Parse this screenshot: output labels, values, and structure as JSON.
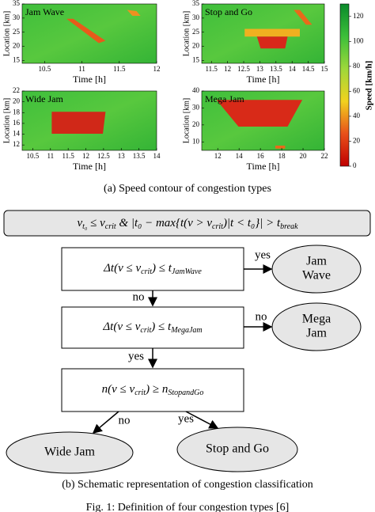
{
  "panels": [
    {
      "title": "Jam Wave",
      "xlabel": "Time [h]",
      "ylabel": "Location [km]",
      "xlim": [
        10.2,
        12
      ],
      "ylim": [
        14,
        35
      ],
      "xticks": [
        10.5,
        11,
        11.5,
        12
      ],
      "yticks": [
        15,
        20,
        25,
        30,
        35
      ]
    },
    {
      "title": "Stop and Go",
      "xlabel": "Time [h]",
      "ylabel": "Location [km]",
      "xlim": [
        11.2,
        15
      ],
      "ylim": [
        14,
        35
      ],
      "xticks": [
        11.5,
        12,
        12.5,
        13,
        13.5,
        14,
        14.5,
        15
      ],
      "yticks": [
        15,
        20,
        25,
        30,
        35
      ]
    },
    {
      "title": "Wide Jam",
      "xlabel": "Time [h]",
      "ylabel": "Location [km]",
      "xlim": [
        10.2,
        14
      ],
      "ylim": [
        11,
        22
      ],
      "xticks": [
        10.5,
        11,
        11.5,
        12,
        12.5,
        13,
        13.5,
        14
      ],
      "yticks": [
        12,
        14,
        16,
        18,
        20,
        22
      ]
    },
    {
      "title": "Mega Jam",
      "xlabel": "Time [h]",
      "ylabel": "Location [km]",
      "xlim": [
        10.5,
        22
      ],
      "ylim": [
        5,
        40
      ],
      "xticks": [
        12,
        14,
        16,
        18,
        20,
        22
      ],
      "yticks": [
        10,
        20,
        30,
        40
      ]
    }
  ],
  "colorbar": {
    "label": "Speed [km/h]",
    "lim": [
      0,
      130
    ],
    "ticks": [
      0,
      20,
      40,
      60,
      80,
      100,
      120
    ]
  },
  "caption_a": "(a) Speed contour of congestion types",
  "flowchart": {
    "condition": [
      "v",
      "t₀",
      " ≤ v",
      "crit",
      " & |t₀ − max{t(v > v",
      "crit",
      ")|t < t₀}| > t",
      "break"
    ],
    "decisions": [
      [
        "Δt(v ≤ v",
        "crit",
        ") ≤ t",
        "JamWave"
      ],
      [
        "Δt(v ≤ v",
        "crit",
        ") ≤ t",
        "MegaJam"
      ],
      [
        "n(v ≤ v",
        "crit",
        ") ≥ n",
        "StopandGo"
      ]
    ],
    "outcomes": [
      [
        "Jam",
        "Wave"
      ],
      [
        "Mega",
        "Jam"
      ],
      [
        "Wide Jam"
      ],
      [
        "Stop and Go"
      ]
    ],
    "edge_labels": [
      "yes",
      "no",
      "no",
      "yes",
      "no",
      "yes"
    ]
  },
  "caption_b": "(b) Schematic representation of congestion classification",
  "figure_caption": "Fig. 1: Definition of four congestion types [6]"
}
